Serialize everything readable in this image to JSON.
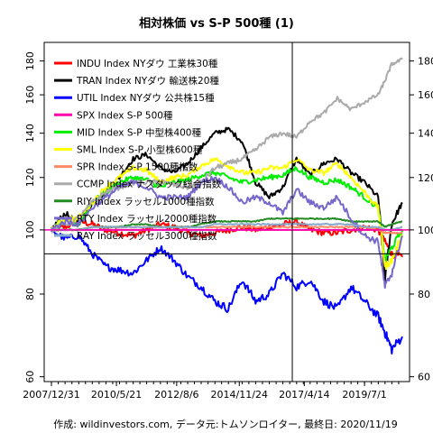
{
  "chart_data": {
    "type": "line",
    "title": "相対株価 vs S-P 500種 (1)",
    "caption": "作成: wildinvestors.com, データ元:トムソンロイター, 最終日: 2020/11/19",
    "x_tick_labels": [
      "2007/12/31",
      "2010/5/21",
      "2012/8/6",
      "2014/11/24",
      "2017/4/14",
      "2019/7/1"
    ],
    "y_ticks": [
      60,
      80,
      100,
      120,
      140,
      160,
      180
    ],
    "y_scale": "log",
    "ylim": [
      59,
      192
    ],
    "grid": false,
    "legend_position": "top-left",
    "reference_lines": {
      "horizontal_y": 100,
      "horizontal_y2": 92,
      "vertical_x_label": "2016/11/4"
    },
    "x": [
      "2007-12-31",
      "2008-06-30",
      "2008-12-31",
      "2009-06-30",
      "2009-12-31",
      "2010-06-30",
      "2010-12-31",
      "2011-06-30",
      "2011-12-31",
      "2012-06-30",
      "2012-12-31",
      "2013-06-30",
      "2013-12-31",
      "2014-06-30",
      "2014-12-31",
      "2015-06-30",
      "2015-12-31",
      "2016-06-30",
      "2016-12-31",
      "2017-06-30",
      "2017-12-31",
      "2018-06-30",
      "2018-12-31",
      "2019-06-30",
      "2019-12-31",
      "2020-03-31",
      "2020-06-30",
      "2020-11-19"
    ],
    "series": [
      {
        "name": "INDU Index NYダウ 工業株30種",
        "color": "#ff0000",
        "width": 2,
        "values": [
          100,
          101,
          103,
          102,
          100,
          99,
          98,
          100,
          102,
          101,
          99,
          98,
          99,
          100,
          101,
          100,
          101,
          102,
          103,
          100,
          99,
          99,
          100,
          101,
          100,
          96,
          92,
          91
        ]
      },
      {
        "name": "TRAN Index NYダウ 輸送株20種",
        "color": "#000000",
        "width": 2,
        "values": [
          100,
          106,
          102,
          110,
          114,
          120,
          128,
          130,
          124,
          122,
          126,
          133,
          140,
          142,
          136,
          118,
          112,
          116,
          128,
          121,
          126,
          128,
          122,
          118,
          112,
          84,
          102,
          110
        ]
      },
      {
        "name": "UTIL Index NYダウ 公共株15種",
        "color": "#0000ff",
        "width": 2,
        "values": [
          100,
          97,
          98,
          92,
          88,
          87,
          86,
          90,
          94,
          90,
          85,
          82,
          78,
          76,
          84,
          78,
          80,
          86,
          82,
          84,
          78,
          76,
          82,
          78,
          74,
          70,
          66,
          69
        ]
      },
      {
        "name": "SPX Index S-P 500種",
        "color": "#ff00aa",
        "width": 2,
        "values": [
          100,
          100,
          100,
          100,
          100,
          100,
          100,
          100,
          100,
          100,
          100,
          100,
          100,
          100,
          100,
          100,
          100,
          100,
          100,
          100,
          100,
          100,
          100,
          100,
          100,
          100,
          100,
          100
        ]
      },
      {
        "name": "MID Index S-P 中型株400種",
        "color": "#00ee00",
        "width": 2,
        "values": [
          100,
          103,
          102,
          110,
          114,
          118,
          120,
          119,
          116,
          118,
          119,
          121,
          122,
          120,
          118,
          119,
          120,
          121,
          124,
          120,
          118,
          119,
          116,
          112,
          108,
          90,
          94,
          100
        ]
      },
      {
        "name": "SML Index S-P 小型株600種",
        "color": "#ffff00",
        "width": 2,
        "values": [
          100,
          104,
          104,
          110,
          116,
          120,
          124,
          123,
          118,
          120,
          121,
          125,
          128,
          125,
          122,
          122,
          124,
          124,
          128,
          123,
          122,
          126,
          120,
          114,
          108,
          88,
          90,
          98
        ]
      },
      {
        "name": "SPR Index S-P 1500種指数",
        "color": "#ff8866",
        "width": 2,
        "values": [
          100,
          100,
          100,
          101,
          101,
          101,
          101,
          101,
          101,
          101,
          101,
          101,
          101,
          101,
          101,
          101,
          101,
          101,
          101,
          101,
          101,
          101,
          101,
          101,
          100,
          99,
          99,
          99
        ]
      },
      {
        "name": "CCMP Index ナスダック総合指数",
        "color": "#aaaaaa",
        "width": 2,
        "values": [
          100,
          102,
          104,
          110,
          114,
          116,
          118,
          118,
          118,
          117,
          116,
          118,
          124,
          126,
          128,
          132,
          138,
          140,
          138,
          146,
          150,
          158,
          152,
          156,
          160,
          168,
          178,
          181
        ]
      },
      {
        "name": "RIY Index ラッセル1000種指数",
        "color": "#228b22",
        "width": 2,
        "values": [
          100,
          100,
          100,
          101,
          101,
          101,
          102,
          102,
          101,
          101,
          101,
          102,
          103,
          103,
          103,
          103,
          104,
          104,
          104,
          104,
          104,
          104,
          103,
          103,
          103,
          101,
          102,
          103
        ]
      },
      {
        "name": "RTY Index ラッセル2000種指数",
        "color": "#7766cc",
        "width": 2,
        "values": [
          100,
          103,
          102,
          108,
          112,
          116,
          118,
          116,
          112,
          112,
          112,
          118,
          120,
          116,
          110,
          112,
          110,
          106,
          115,
          110,
          108,
          112,
          104,
          98,
          96,
          82,
          86,
          98
        ]
      },
      {
        "name": "RAY Index ラッセル3000種指数",
        "color": "#88aacc",
        "width": 2,
        "values": [
          100,
          100,
          100,
          101,
          101,
          101,
          101,
          101,
          101,
          101,
          101,
          101,
          102,
          102,
          102,
          102,
          102,
          102,
          102,
          102,
          102,
          102,
          102,
          101,
          101,
          100,
          100,
          101
        ]
      }
    ]
  }
}
